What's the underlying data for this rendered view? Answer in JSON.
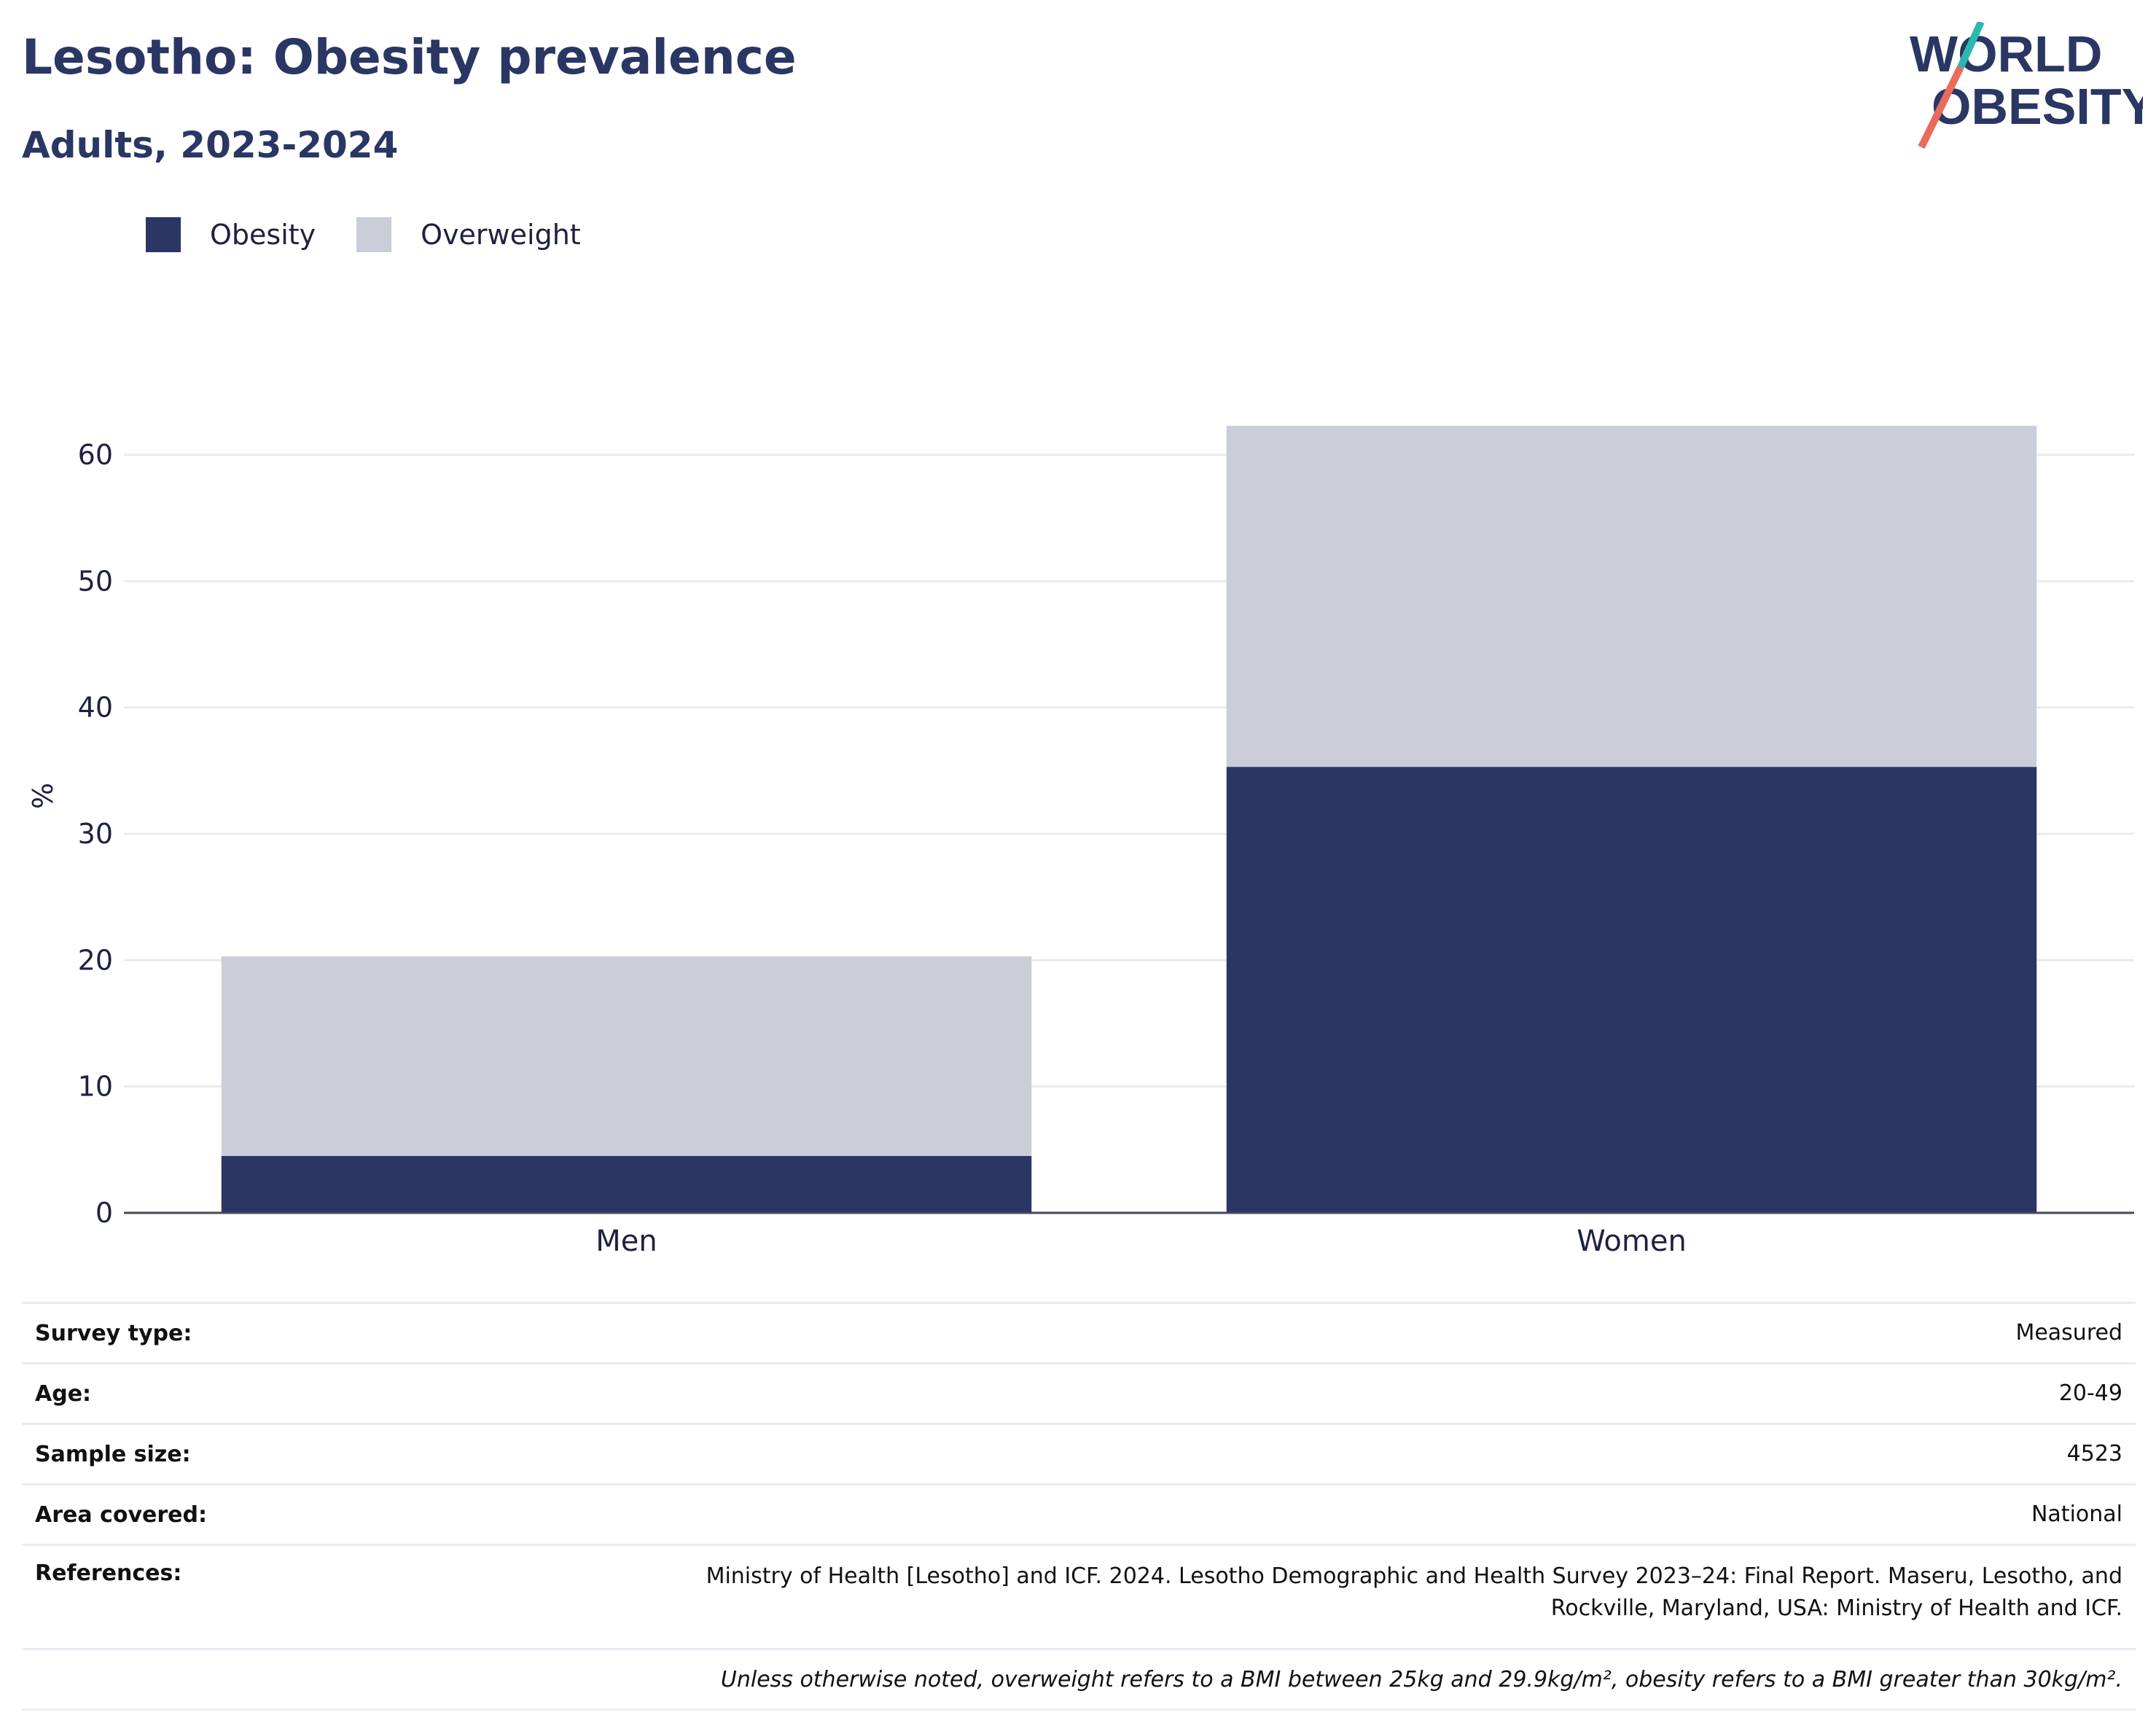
{
  "header": {
    "title": "Lesotho: Obesity prevalence",
    "subtitle": "Adults, 2023-2024"
  },
  "logo": {
    "line1": "WORLD",
    "line2": "OBESITY"
  },
  "colors": {
    "obesity": "#2a3663",
    "overweight": "#cbcdd8",
    "text": "#2a3663",
    "accent_teal": "#2bb8b0",
    "accent_coral": "#e86b5c"
  },
  "chart_data": {
    "type": "bar",
    "stacked": true,
    "categories": [
      "Men",
      "Women"
    ],
    "series": [
      {
        "name": "Obesity",
        "values": [
          4.5,
          35.3
        ]
      },
      {
        "name": "Overweight",
        "values": [
          15.8,
          27.0
        ]
      }
    ],
    "ylabel": "%",
    "xlabel": "",
    "ylim": [
      0,
      66
    ],
    "yticks": [
      0,
      10,
      20,
      30,
      40,
      50,
      60
    ],
    "grid": true,
    "legend_position": "top-left"
  },
  "meta": {
    "survey_type_label": "Survey type:",
    "survey_type": "Measured",
    "age_label": "Age:",
    "age": "20-49",
    "sample_size_label": "Sample size:",
    "sample_size": "4523",
    "area_label": "Area covered:",
    "area": "National",
    "references_label": "References:",
    "references_line1": "Ministry of Health [Lesotho] and ICF. 2024. Lesotho Demographic and Health Survey 2023–24: Final Report. Maseru, Lesotho, and",
    "references_line2": "Rockville, Maryland, USA: Ministry of Health and ICF.",
    "note": "Unless otherwise noted, overweight refers to a BMI between 25kg and 29.9kg/m², obesity refers to a BMI greater than 30kg/m²."
  }
}
